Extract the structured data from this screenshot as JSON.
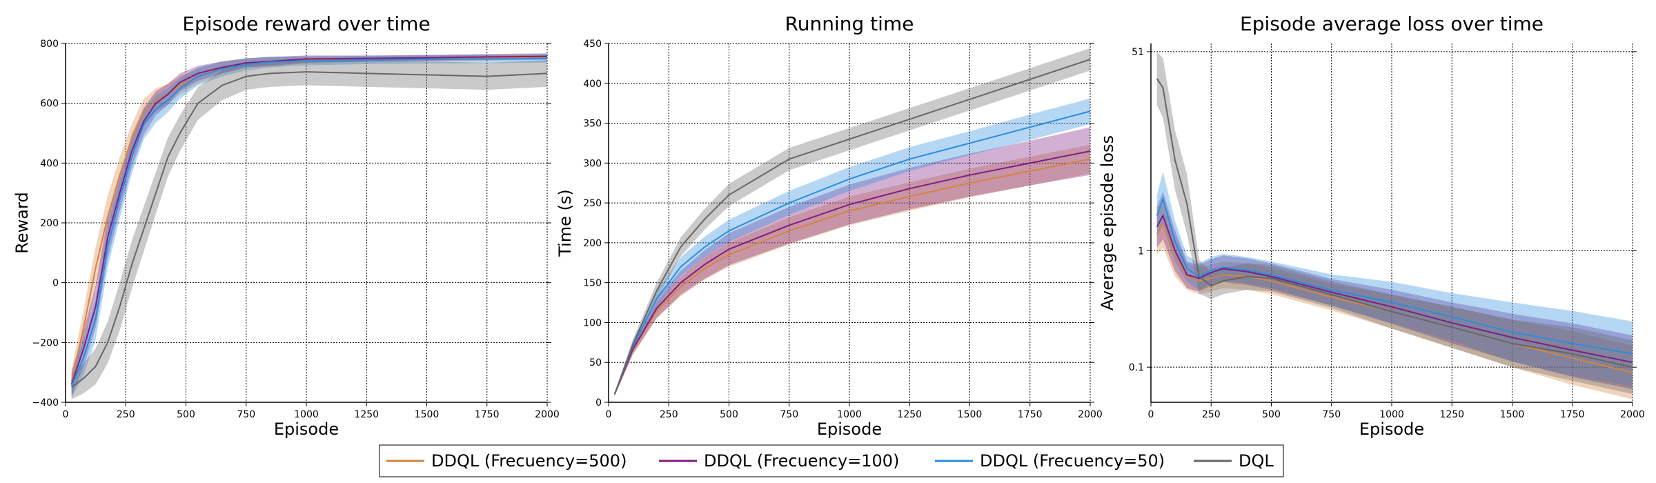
{
  "chart_data": [
    {
      "type": "line",
      "title": "Episode reward over time",
      "xlabel": "Episode",
      "ylabel": "Reward",
      "xlim": [
        0,
        2000
      ],
      "ylim": [
        -400,
        800
      ],
      "yscale": "linear",
      "grid": true,
      "xticks": [
        0,
        250,
        500,
        750,
        1000,
        1250,
        1500,
        1750,
        2000
      ],
      "yticks": [
        -400,
        -200,
        0,
        200,
        400,
        600,
        800
      ],
      "ytick_labels": [
        "−400",
        "−200",
        "0",
        "200",
        "400",
        "600",
        "800"
      ],
      "series": [
        {
          "name": "DDQL (Frecuency=500)",
          "color": "#d4843f",
          "x": [
            25,
            75,
            125,
            175,
            225,
            275,
            325,
            375,
            425,
            475,
            550,
            650,
            750,
            850,
            1000,
            1250,
            1500,
            1750,
            2000
          ],
          "y": [
            -330,
            -150,
            50,
            220,
            360,
            480,
            570,
            610,
            630,
            660,
            690,
            720,
            735,
            740,
            745,
            748,
            750,
            752,
            755
          ],
          "spread": [
            40,
            60,
            70,
            70,
            60,
            50,
            45,
            40,
            35,
            30,
            25,
            20,
            15,
            15,
            12,
            10,
            10,
            10,
            10
          ]
        },
        {
          "name": "DDQL (Frecuency=100)",
          "color": "#7e1e80",
          "x": [
            25,
            75,
            125,
            175,
            225,
            275,
            325,
            375,
            425,
            475,
            550,
            650,
            750,
            850,
            1000,
            1250,
            1500,
            1750,
            2000
          ],
          "y": [
            -340,
            -220,
            -80,
            150,
            300,
            440,
            540,
            600,
            630,
            670,
            700,
            720,
            735,
            740,
            748,
            750,
            752,
            755,
            757
          ],
          "spread": [
            40,
            60,
            70,
            70,
            60,
            55,
            45,
            40,
            35,
            30,
            25,
            20,
            15,
            15,
            12,
            10,
            10,
            10,
            10
          ]
        },
        {
          "name": "DDQL (Frecuency=50)",
          "color": "#2a8ce0",
          "x": [
            25,
            75,
            125,
            175,
            225,
            275,
            325,
            375,
            425,
            475,
            550,
            650,
            750,
            850,
            1000,
            1250,
            1500,
            1750,
            2000
          ],
          "y": [
            -345,
            -250,
            -120,
            120,
            280,
            420,
            530,
            580,
            610,
            650,
            690,
            715,
            730,
            738,
            742,
            745,
            747,
            748,
            750
          ],
          "spread": [
            40,
            60,
            70,
            70,
            65,
            55,
            50,
            45,
            40,
            35,
            30,
            25,
            20,
            18,
            15,
            14,
            14,
            14,
            14
          ]
        },
        {
          "name": "DQL",
          "color": "#666666",
          "x": [
            25,
            75,
            125,
            175,
            225,
            275,
            325,
            375,
            425,
            475,
            550,
            650,
            750,
            850,
            1000,
            1250,
            1500,
            1750,
            2000
          ],
          "y": [
            -350,
            -320,
            -280,
            -200,
            -80,
            60,
            180,
            300,
            420,
            500,
            600,
            660,
            690,
            700,
            705,
            700,
            695,
            690,
            700
          ],
          "spread": [
            40,
            50,
            60,
            70,
            80,
            80,
            75,
            70,
            65,
            60,
            55,
            50,
            45,
            45,
            45,
            45,
            45,
            45,
            45
          ]
        }
      ]
    },
    {
      "type": "line",
      "title": "Running time",
      "xlabel": "Episode",
      "ylabel": "Time (s)",
      "xlim": [
        0,
        2000
      ],
      "ylim": [
        0,
        450
      ],
      "yscale": "linear",
      "grid": true,
      "xticks": [
        0,
        250,
        500,
        750,
        1000,
        1250,
        1500,
        1750,
        2000
      ],
      "yticks": [
        0,
        50,
        100,
        150,
        200,
        250,
        300,
        350,
        400,
        450
      ],
      "ytick_labels": [
        "0",
        "50",
        "100",
        "150",
        "200",
        "250",
        "300",
        "350",
        "400",
        "450"
      ],
      "series": [
        {
          "name": "DDQL (Frecuency=500)",
          "color": "#d4843f",
          "x": [
            25,
            100,
            200,
            300,
            400,
            500,
            750,
            1000,
            1250,
            1500,
            1750,
            2000
          ],
          "y": [
            10,
            65,
            115,
            145,
            168,
            185,
            215,
            240,
            258,
            275,
            290,
            305
          ],
          "spread": [
            2,
            6,
            10,
            12,
            14,
            15,
            17,
            18,
            18,
            18,
            18,
            18
          ]
        },
        {
          "name": "DDQL (Frecuency=100)",
          "color": "#7e1e80",
          "x": [
            25,
            100,
            200,
            300,
            400,
            500,
            750,
            1000,
            1250,
            1500,
            1750,
            2000
          ],
          "y": [
            10,
            66,
            118,
            150,
            173,
            192,
            222,
            248,
            268,
            285,
            300,
            315
          ],
          "spread": [
            2,
            6,
            12,
            15,
            18,
            20,
            23,
            25,
            26,
            27,
            28,
            30
          ]
        },
        {
          "name": "DDQL (Frecuency=50)",
          "color": "#2a8ce0",
          "x": [
            25,
            100,
            200,
            300,
            400,
            500,
            750,
            1000,
            1250,
            1500,
            1750,
            2000
          ],
          "y": [
            10,
            70,
            130,
            170,
            195,
            215,
            250,
            280,
            305,
            325,
            345,
            365
          ],
          "spread": [
            2,
            6,
            10,
            12,
            13,
            14,
            15,
            15,
            15,
            15,
            16,
            16
          ]
        },
        {
          "name": "DQL",
          "color": "#666666",
          "x": [
            25,
            100,
            200,
            300,
            400,
            500,
            750,
            1000,
            1250,
            1500,
            1750,
            2000
          ],
          "y": [
            10,
            72,
            140,
            195,
            230,
            260,
            305,
            330,
            355,
            380,
            405,
            430
          ],
          "spread": [
            2,
            6,
            10,
            12,
            13,
            14,
            14,
            14,
            14,
            14,
            14,
            14
          ]
        }
      ]
    },
    {
      "type": "line",
      "title": "Episode average loss over time",
      "xlabel": "Episode",
      "ylabel": "Average episode loss",
      "xlim": [
        0,
        2000
      ],
      "ylim": [
        0.05,
        60
      ],
      "yscale": "log",
      "grid": true,
      "xticks": [
        0,
        250,
        500,
        750,
        1000,
        1250,
        1500,
        1750,
        2000
      ],
      "yticks": [
        0.1,
        1,
        51
      ],
      "ytick_labels": [
        "0.1",
        "1",
        "51"
      ],
      "series": [
        {
          "name": "DDQL (Frecuency=500)",
          "color": "#d4843f",
          "x": [
            25,
            50,
            100,
            150,
            200,
            250,
            300,
            400,
            500,
            750,
            1000,
            1250,
            1500,
            1750,
            2000
          ],
          "y": [
            1.4,
            1.7,
            0.9,
            0.6,
            0.55,
            0.58,
            0.62,
            0.6,
            0.55,
            0.4,
            0.3,
            0.22,
            0.16,
            0.12,
            0.09
          ],
          "spread": [
            0.25,
            0.3,
            0.25,
            0.15,
            0.15,
            0.15,
            0.15,
            0.15,
            0.15,
            0.15,
            0.2,
            0.25,
            0.3,
            0.35,
            0.35
          ]
        },
        {
          "name": "DDQL (Frecuency=100)",
          "color": "#7e1e80",
          "x": [
            25,
            50,
            100,
            150,
            200,
            250,
            300,
            400,
            500,
            750,
            1000,
            1250,
            1500,
            1750,
            2000
          ],
          "y": [
            1.6,
            2.0,
            1.0,
            0.62,
            0.58,
            0.65,
            0.7,
            0.66,
            0.6,
            0.44,
            0.33,
            0.24,
            0.18,
            0.14,
            0.11
          ],
          "spread": [
            0.25,
            0.3,
            0.25,
            0.15,
            0.15,
            0.15,
            0.15,
            0.15,
            0.15,
            0.15,
            0.2,
            0.25,
            0.3,
            0.35,
            0.35
          ]
        },
        {
          "name": "DDQL (Frecuency=50)",
          "color": "#2a8ce0",
          "x": [
            25,
            50,
            100,
            150,
            200,
            250,
            300,
            400,
            500,
            750,
            1000,
            1250,
            1500,
            1750,
            2000
          ],
          "y": [
            2.0,
            2.8,
            1.2,
            0.7,
            0.6,
            0.68,
            0.72,
            0.68,
            0.62,
            0.46,
            0.36,
            0.27,
            0.2,
            0.16,
            0.13
          ],
          "spread": [
            0.25,
            0.35,
            0.25,
            0.15,
            0.15,
            0.15,
            0.15,
            0.15,
            0.15,
            0.18,
            0.25,
            0.3,
            0.4,
            0.45,
            0.45
          ]
        },
        {
          "name": "DQL",
          "color": "#666666",
          "x": [
            25,
            50,
            100,
            150,
            200,
            250,
            300,
            400,
            500,
            750,
            1000,
            1250,
            1500,
            1750,
            2000
          ],
          "y": [
            30,
            25,
            6,
            2.5,
            0.6,
            0.5,
            0.55,
            0.6,
            0.58,
            0.42,
            0.3,
            0.22,
            0.16,
            0.13,
            0.1
          ],
          "spread": [
            0.35,
            0.4,
            0.4,
            0.4,
            0.2,
            0.15,
            0.15,
            0.15,
            0.15,
            0.15,
            0.2,
            0.25,
            0.3,
            0.35,
            0.35
          ]
        }
      ]
    }
  ],
  "legend": {
    "items": [
      {
        "label": "DDQL (Frecuency=500)",
        "color": "#d4843f"
      },
      {
        "label": "DDQL (Frecuency=100)",
        "color": "#7e1e80"
      },
      {
        "label": "DDQL (Frecuency=50)",
        "color": "#2a8ce0"
      },
      {
        "label": "DQL",
        "color": "#666666"
      }
    ],
    "placement": "bottom-center"
  }
}
